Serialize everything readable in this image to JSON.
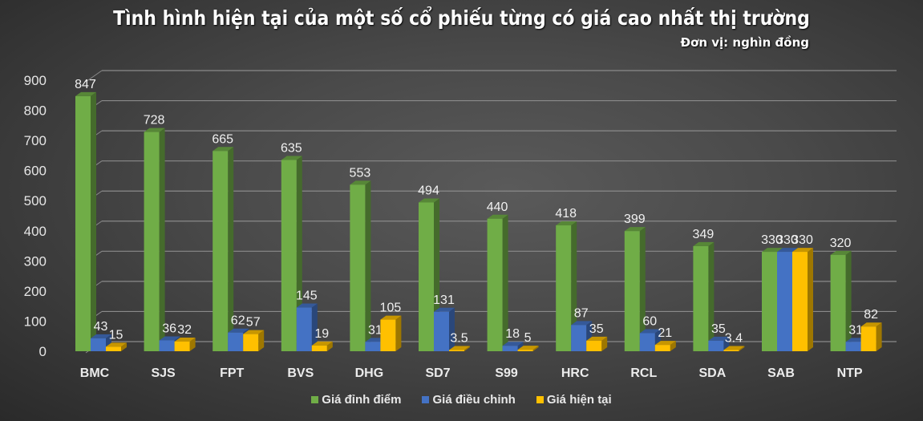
{
  "chart_data": {
    "type": "bar",
    "title": "Tình hình hiện tại của một số cổ phiếu từng có giá cao nhất thị trường",
    "subtitle": "Đơn vị: nghìn đồng",
    "xlabel": "",
    "ylabel": "",
    "ylim": [
      0,
      900
    ],
    "yticks": [
      0,
      100,
      200,
      300,
      400,
      500,
      600,
      700,
      800,
      900
    ],
    "grid": true,
    "legend_position": "bottom",
    "categories": [
      "BMC",
      "SJS",
      "FPT",
      "BVS",
      "DHG",
      "SD7",
      "S99",
      "HRC",
      "RCL",
      "SDA",
      "SAB",
      "NTP"
    ],
    "series": [
      {
        "name": "Giá đỉnh điểm",
        "color": "#70ad47",
        "values": [
          847,
          728,
          665,
          635,
          553,
          494,
          440,
          418,
          399,
          349,
          330,
          320
        ],
        "labels": [
          "847",
          "728",
          "665",
          "635",
          "553",
          "494",
          "440",
          "418",
          "399",
          "349",
          "330",
          "320"
        ]
      },
      {
        "name": "Giá điều chỉnh",
        "color": "#4472c4",
        "values": [
          43,
          36,
          62,
          145,
          31,
          131,
          18,
          87,
          60,
          35,
          330,
          31
        ],
        "labels": [
          "43",
          "36",
          "62",
          "145",
          "31",
          "131",
          "18",
          "87",
          "60",
          "35",
          "330",
          "31"
        ]
      },
      {
        "name": "Giá hiện tại",
        "color": "#ffc000",
        "values": [
          15,
          32,
          57,
          19,
          105,
          3.5,
          5,
          35,
          21,
          3.4,
          330,
          82
        ],
        "labels": [
          "15",
          "32",
          "57",
          "19",
          "105",
          "3.5",
          "5",
          "35",
          "21",
          "3.4",
          "330",
          "82"
        ]
      }
    ]
  }
}
